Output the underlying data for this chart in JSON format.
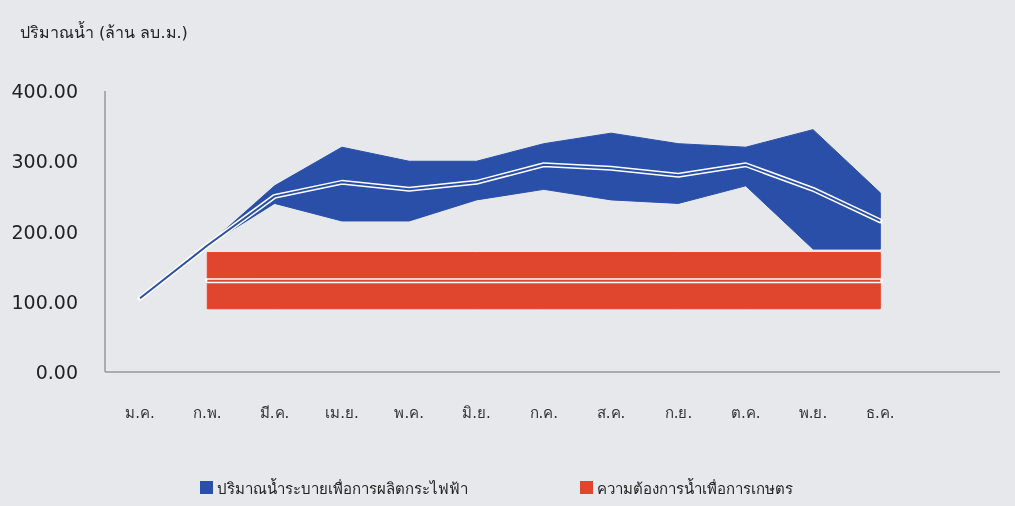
{
  "chart_data": {
    "type": "line",
    "ylabel": "ปริมาณน้ำ (ล้าน ลบ.ม.)",
    "categories": [
      "ม.ค.",
      "ก.พ.",
      "มี.ค.",
      "เม.ย.",
      "พ.ค.",
      "มิ.ย.",
      "ก.ค.",
      "ส.ค.",
      "ก.ย.",
      "ต.ค.",
      "พ.ย.",
      "ธ.ค."
    ],
    "series": [
      {
        "name": "ปริมาณน้ำระบายเพื่อการผลิตกระไฟฟ้า",
        "color": "#2a4fa8",
        "values": [
          105,
          180,
          250,
          270,
          260,
          270,
          295,
          290,
          280,
          295,
          260,
          215
        ],
        "lower": [
          105,
          180,
          240,
          215,
          215,
          245,
          260,
          245,
          240,
          265,
          175,
          175
        ],
        "upper": [
          105,
          180,
          265,
          320,
          300,
          300,
          325,
          340,
          325,
          320,
          345,
          255
        ]
      },
      {
        "name": "ความต้องการน้ำเพื่อการเกษตร",
        "color": "#e0452e",
        "values": [
          null,
          130,
          130,
          130,
          130,
          130,
          130,
          130,
          130,
          130,
          130,
          130
        ],
        "lower": [
          null,
          90,
          90,
          90,
          90,
          90,
          90,
          90,
          90,
          90,
          90,
          90
        ],
        "upper": [
          null,
          170,
          170,
          170,
          170,
          170,
          170,
          170,
          170,
          170,
          170,
          170
        ]
      }
    ],
    "ylim": [
      0,
      400
    ],
    "yticks": [
      {
        "value": 0,
        "label": "0.00"
      },
      {
        "value": 100,
        "label": "100.00"
      },
      {
        "value": 200,
        "label": "200.00"
      },
      {
        "value": 300,
        "label": "300.00"
      },
      {
        "value": 400,
        "label": "400.00"
      }
    ],
    "grid": false,
    "legend": "bottom"
  }
}
